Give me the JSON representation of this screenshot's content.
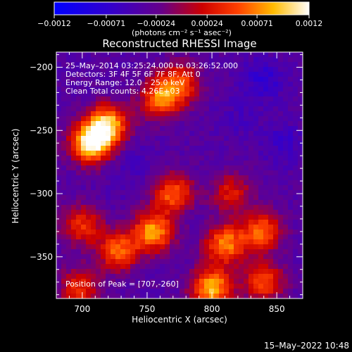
{
  "chart_data": {
    "type": "heatmap",
    "title": "Reconstructed RHESSI Image",
    "xlabel": "Heliocentric X (arcsec)",
    "ylabel": "Heliocentric Y (arcsec)",
    "xlim": [
      680,
      870
    ],
    "ylim": [
      -383,
      -188
    ],
    "x_ticks": [
      700,
      750,
      800,
      850
    ],
    "x_tick_labels": [
      "700",
      "750",
      "800",
      "850"
    ],
    "y_ticks": [
      -200,
      -250,
      -300,
      -350
    ],
    "y_tick_labels": [
      "−200",
      "−250",
      "−300",
      "−350"
    ],
    "colorbar": {
      "ticks": [
        -0.0012,
        -0.00071,
        -0.00024,
        0.00024,
        0.00071,
        0.0012
      ],
      "tick_labels": [
        "−0.0012",
        "−0.00071",
        "−0.00024",
        "0.00024",
        "0.00071",
        "0.0012"
      ],
      "range": [
        -0.0012,
        0.0012
      ],
      "unit_label": "(photons cm⁻² s⁻¹ asec⁻²)",
      "colormap": "blue-purple-red-yellow-white"
    },
    "annotations": [
      "25–May–2014 03:25:24.000 to 03:26:52.000",
      "Detectors: 3F 4F 5F 6F 7F 8F, Att 0",
      "Energy Range: 12.0 – 25.0 keV",
      "Clean     Total counts: 4.26E+03"
    ],
    "peak_label": "Position of Peak = [707,-260]",
    "peak": [
      707,
      -260
    ],
    "bright_regions": [
      {
        "x": 707,
        "y": -260,
        "value": 0.0012
      },
      {
        "x": 720,
        "y": -245,
        "value": 0.0009
      },
      {
        "x": 760,
        "y": -225,
        "value": 0.0006
      },
      {
        "x": 775,
        "y": -213,
        "value": 0.0005
      },
      {
        "x": 770,
        "y": -300,
        "value": 0.0006
      },
      {
        "x": 755,
        "y": -330,
        "value": 0.0008
      },
      {
        "x": 728,
        "y": -345,
        "value": 0.0006
      },
      {
        "x": 810,
        "y": -340,
        "value": 0.0007
      },
      {
        "x": 838,
        "y": -330,
        "value": 0.0006
      },
      {
        "x": 800,
        "y": -375,
        "value": 0.0009
      },
      {
        "x": 840,
        "y": -370,
        "value": 0.0005
      },
      {
        "x": 700,
        "y": -325,
        "value": 0.0004
      },
      {
        "x": 698,
        "y": -375,
        "value": 0.0004
      },
      {
        "x": 815,
        "y": -300,
        "value": 0.0003
      }
    ],
    "faint_regions": [
      {
        "x": 840,
        "y": -210,
        "value": -0.0007
      },
      {
        "x": 855,
        "y": -260,
        "value": -0.0006
      },
      {
        "x": 820,
        "y": -240,
        "value": -0.0005
      },
      {
        "x": 740,
        "y": -275,
        "value": -0.0005
      },
      {
        "x": 790,
        "y": -320,
        "value": -0.0004
      },
      {
        "x": 725,
        "y": -300,
        "value": -0.0004
      }
    ]
  },
  "footer": {
    "timestamp": "15–May–2022 10:48"
  }
}
